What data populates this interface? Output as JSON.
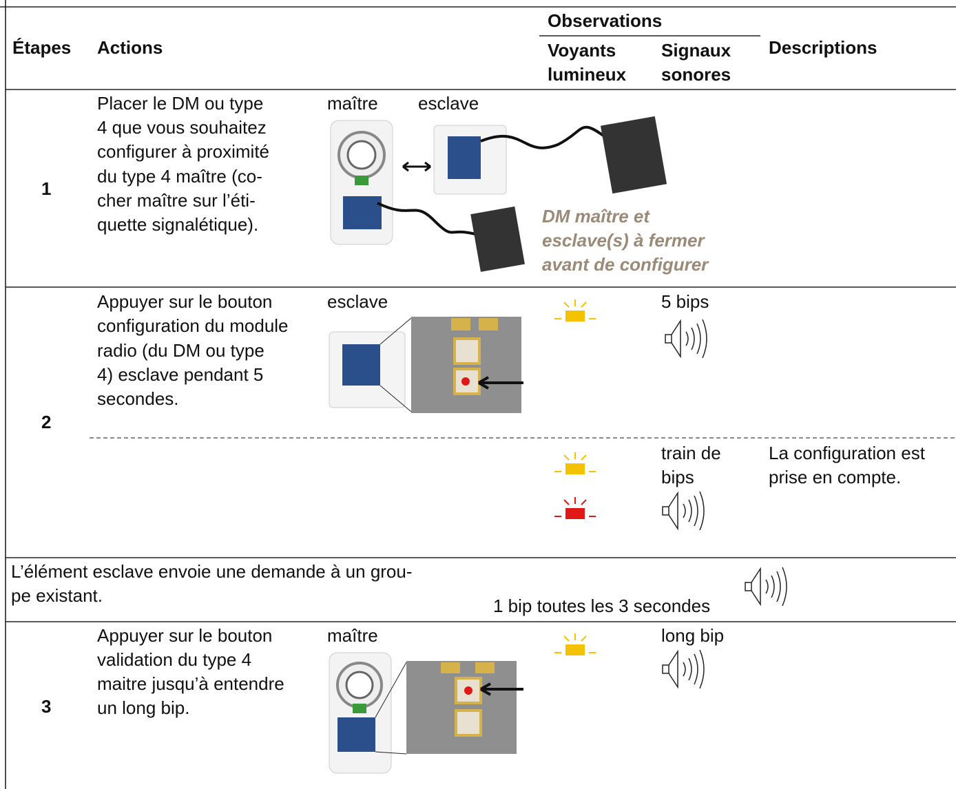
{
  "header": {
    "steps": "Étapes",
    "actions": "Actions",
    "observations": "Observations",
    "lights": [
      "Voyants",
      "lumineux"
    ],
    "sounds": [
      "Signaux",
      "sonores"
    ],
    "descriptions": "Descriptions"
  },
  "rows": [
    {
      "step": "1",
      "action": [
        "Placer le DM ou type",
        "4 que vous souhaitez",
        "configurer à proximité",
        "du type 4 maître (co-",
        "cher maître sur l’éti-",
        "quette signalétique)."
      ],
      "image_labels": [
        "maître",
        "esclave"
      ],
      "note": [
        "DM maître et",
        "esclave(s) à fermer",
        "avant de configurer"
      ]
    },
    {
      "step": "2",
      "action": [
        "Appuyer sur le bouton",
        "configuration du module",
        "radio (du DM ou type",
        "4) esclave pendant 5",
        "secondes."
      ],
      "image_labels": [
        "esclave"
      ],
      "sound": [
        "5 bips"
      ],
      "sub": {
        "sound": [
          "train de",
          "bips"
        ],
        "description": [
          "La configuration est",
          "prise en compte."
        ]
      }
    },
    {
      "text": [
        "L’élément esclave envoie une demande à un grou-",
        "pe existant."
      ],
      "sound": "1 bip toutes les 3 secondes"
    },
    {
      "step": "3",
      "action": [
        "Appuyer sur le bouton",
        "validation du type 4",
        "maitre jusqu’à entendre",
        "un long bip."
      ],
      "image_labels": [
        "maître"
      ],
      "sound": [
        "long bip"
      ]
    }
  ]
}
